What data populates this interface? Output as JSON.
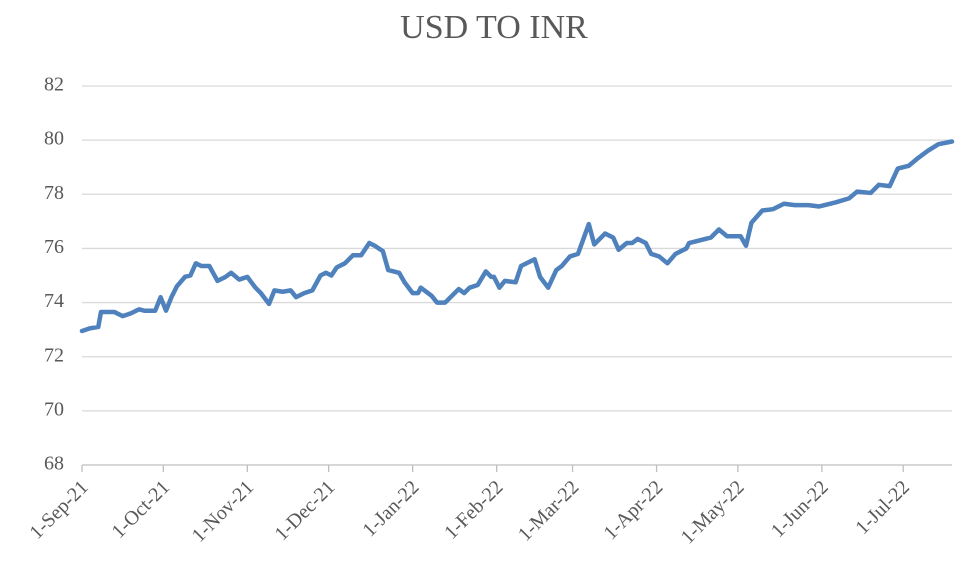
{
  "chart_data": {
    "type": "line",
    "title": "USD TO INR",
    "x": [
      "2021-09-01",
      "2021-09-04",
      "2021-09-07",
      "2021-09-08",
      "2021-09-13",
      "2021-09-16",
      "2021-09-19",
      "2021-09-22",
      "2021-09-24",
      "2021-09-28",
      "2021-09-30",
      "2021-10-02",
      "2021-10-04",
      "2021-10-06",
      "2021-10-09",
      "2021-10-11",
      "2021-10-13",
      "2021-10-15",
      "2021-10-18",
      "2021-10-21",
      "2021-10-24",
      "2021-10-26",
      "2021-10-29",
      "2021-11-01",
      "2021-11-04",
      "2021-11-06",
      "2021-11-09",
      "2021-11-11",
      "2021-11-14",
      "2021-11-17",
      "2021-11-19",
      "2021-11-22",
      "2021-11-25",
      "2021-11-28",
      "2021-11-30",
      "2021-12-02",
      "2021-12-04",
      "2021-12-07",
      "2021-12-10",
      "2021-12-13",
      "2021-12-16",
      "2021-12-18",
      "2021-12-21",
      "2021-12-23",
      "2021-12-27",
      "2021-12-29",
      "2022-01-01",
      "2022-01-03",
      "2022-01-04",
      "2022-01-08",
      "2022-01-10",
      "2022-01-13",
      "2022-01-16",
      "2022-01-18",
      "2022-01-20",
      "2022-01-22",
      "2022-01-25",
      "2022-01-28",
      "2022-01-30",
      "2022-01-31",
      "2022-02-02",
      "2022-02-04",
      "2022-02-08",
      "2022-02-10",
      "2022-02-15",
      "2022-02-17",
      "2022-02-20",
      "2022-02-23",
      "2022-02-25",
      "2022-02-28",
      "2022-03-03",
      "2022-03-07",
      "2022-03-09",
      "2022-03-13",
      "2022-03-16",
      "2022-03-18",
      "2022-03-21",
      "2022-03-23",
      "2022-03-25",
      "2022-03-28",
      "2022-03-30",
      "2022-04-02",
      "2022-04-05",
      "2022-04-08",
      "2022-04-12",
      "2022-04-13",
      "2022-04-17",
      "2022-04-21",
      "2022-04-24",
      "2022-04-27",
      "2022-05-02",
      "2022-05-04",
      "2022-05-06",
      "2022-05-10",
      "2022-05-14",
      "2022-05-18",
      "2022-05-22",
      "2022-05-27",
      "2022-05-31",
      "2022-06-06",
      "2022-06-11",
      "2022-06-14",
      "2022-06-19",
      "2022-06-22",
      "2022-06-26",
      "2022-06-29",
      "2022-07-03",
      "2022-07-06",
      "2022-07-10",
      "2022-07-14",
      "2022-07-19"
    ],
    "series": [
      {
        "name": "USD TO INR",
        "color": "#4f81bd",
        "values": [
          72.95,
          73.05,
          73.1,
          73.65,
          73.65,
          73.5,
          73.6,
          73.75,
          73.7,
          73.7,
          74.2,
          73.7,
          74.2,
          74.6,
          74.95,
          75.0,
          75.45,
          75.35,
          75.35,
          74.8,
          74.95,
          75.1,
          74.85,
          74.95,
          74.55,
          74.35,
          73.95,
          74.45,
          74.4,
          74.45,
          74.2,
          74.35,
          74.45,
          75.0,
          75.1,
          75.0,
          75.3,
          75.45,
          75.75,
          75.75,
          76.2,
          76.1,
          75.9,
          75.2,
          75.1,
          74.75,
          74.35,
          74.35,
          74.55,
          74.25,
          74.0,
          74.0,
          74.3,
          74.5,
          74.35,
          74.55,
          74.65,
          75.15,
          74.95,
          74.95,
          74.55,
          74.8,
          74.75,
          75.35,
          75.6,
          74.95,
          74.55,
          75.2,
          75.35,
          75.7,
          75.8,
          76.9,
          76.15,
          76.55,
          76.4,
          75.95,
          76.2,
          76.2,
          76.35,
          76.2,
          75.8,
          75.7,
          75.45,
          75.8,
          76.0,
          76.2,
          76.3,
          76.4,
          76.7,
          76.45,
          76.45,
          76.1,
          76.95,
          77.4,
          77.45,
          77.65,
          77.6,
          77.6,
          77.55,
          77.7,
          77.85,
          78.1,
          78.05,
          78.35,
          78.3,
          78.95,
          79.05,
          79.3,
          79.6,
          79.85,
          79.95
        ]
      }
    ],
    "xlim": [
      "2021-09-01",
      "2022-07-19"
    ],
    "xticks": [
      {
        "value": "2021-09-01",
        "label": "1-Sep-21"
      },
      {
        "value": "2021-10-01",
        "label": "1-Oct-21"
      },
      {
        "value": "2021-11-01",
        "label": "1-Nov-21"
      },
      {
        "value": "2021-12-01",
        "label": "1-Dec-21"
      },
      {
        "value": "2022-01-01",
        "label": "1-Jan-22"
      },
      {
        "value": "2022-02-01",
        "label": "1-Feb-22"
      },
      {
        "value": "2022-03-01",
        "label": "1-Mar-22"
      },
      {
        "value": "2022-04-01",
        "label": "1-Apr-22"
      },
      {
        "value": "2022-05-01",
        "label": "1-May-22"
      },
      {
        "value": "2022-06-01",
        "label": "1-Jun-22"
      },
      {
        "value": "2022-07-01",
        "label": "1-Jul-22"
      }
    ],
    "ylim": [
      68,
      82
    ],
    "yticks": [
      68,
      70,
      72,
      74,
      76,
      78,
      80,
      82
    ],
    "grid": true
  }
}
